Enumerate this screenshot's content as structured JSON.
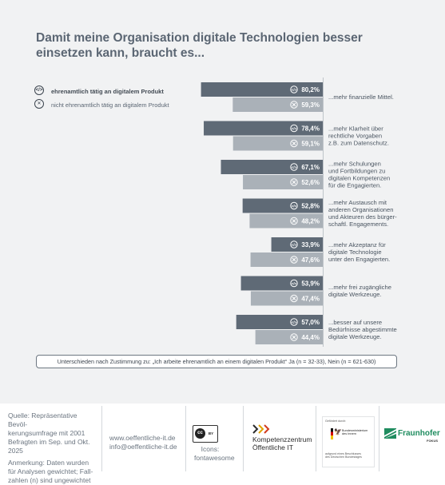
{
  "title": "Damit meine Organisation digitale Technologien besser einsetzen kann, braucht es...",
  "legend": {
    "yes": {
      "label": "ehrenamtlich tätig an digitalem Produkt",
      "icon": "code-icon"
    },
    "no": {
      "label": "nicht ehrenamtlich tätig an digitalem Produkt",
      "icon": "x-circle-icon"
    }
  },
  "colors": {
    "yes_bar": "#5f6a76",
    "no_bar": "#aab1b8",
    "background": "#f1f2f3"
  },
  "chart_data": {
    "type": "bar",
    "orientation": "horizontal",
    "categories": [
      [
        "...mehr finanzielle Mittel."
      ],
      [
        "...mehr Klarheit über",
        "rechtliche Vorgaben",
        "z.B. zum Datenschutz."
      ],
      [
        "...mehr Schulungen",
        "und Fortbildungen zu",
        "digitalen Kompetenzen",
        "für die Engagierten."
      ],
      [
        "...mehr Austausch mit",
        "anderen Organisationen",
        "und Akteuren des bürger-",
        "schaftl. Engagements."
      ],
      [
        "...mehr Akzeptanz für",
        "digitale Technologie",
        "unter den Engagierten."
      ],
      [
        "...mehr frei zugängliche",
        "digitale Werkzeuge."
      ],
      [
        "...besser auf unsere",
        "Bedürfnisse abgestimmte",
        "digitale Werkzeuge."
      ]
    ],
    "series": [
      {
        "name": "ehrenamtlich tätig an digitalem Produkt",
        "values": [
          80.2,
          78.4,
          67.1,
          52.8,
          33.9,
          53.9,
          57.0
        ],
        "labels": [
          "80,2%",
          "78,4%",
          "67,1%",
          "52,8%",
          "33,9%",
          "53,9%",
          "57,0%"
        ]
      },
      {
        "name": "nicht ehrenamtlich tätig an digitalem Produkt",
        "values": [
          59.3,
          59.1,
          52.6,
          48.2,
          47.6,
          47.4,
          44.4
        ],
        "labels": [
          "59,3%",
          "59,1%",
          "52,6%",
          "48,2%",
          "47,6%",
          "47,4%",
          "44,4%"
        ]
      }
    ],
    "xlim": [
      0,
      100
    ]
  },
  "note": "Unterschieden nach Zustimmung zu: „Ich arbeite ehrenamtlich an einem digitalen Produkt“ Ja (n = 32-33), Nein (n = 621-630)",
  "footer": {
    "source": [
      "Quelle: Repräsentative Bevöl-",
      "kerungsumfrage mit 2001",
      "Befragten im Sep. und Okt.",
      "2025"
    ],
    "remark": [
      "Anmerkung: Daten wurden",
      "für Analysen gewichtet; Fall-",
      "zahlen (n) sind ungewichtet"
    ],
    "web": "www.oeffentliche-it.de",
    "email": "info@oeffentliche-it.de",
    "license_badge": {
      "cc": "cc",
      "by": "BY"
    },
    "icons_credit": [
      "Icons:",
      "fontawesome"
    ],
    "kompetenz": [
      "Kompetenzzentrum",
      "Öffentliche IT"
    ],
    "bmi": {
      "header": "Gefördert durch:",
      "ministry": [
        "Bundesministerium",
        "des Innern"
      ],
      "footer": [
        "aufgrund eines Beschlusses",
        "des Deutschen Bundestages"
      ]
    },
    "fraunhofer": {
      "name": "Fraunhofer",
      "sub": "FOKUS"
    }
  }
}
